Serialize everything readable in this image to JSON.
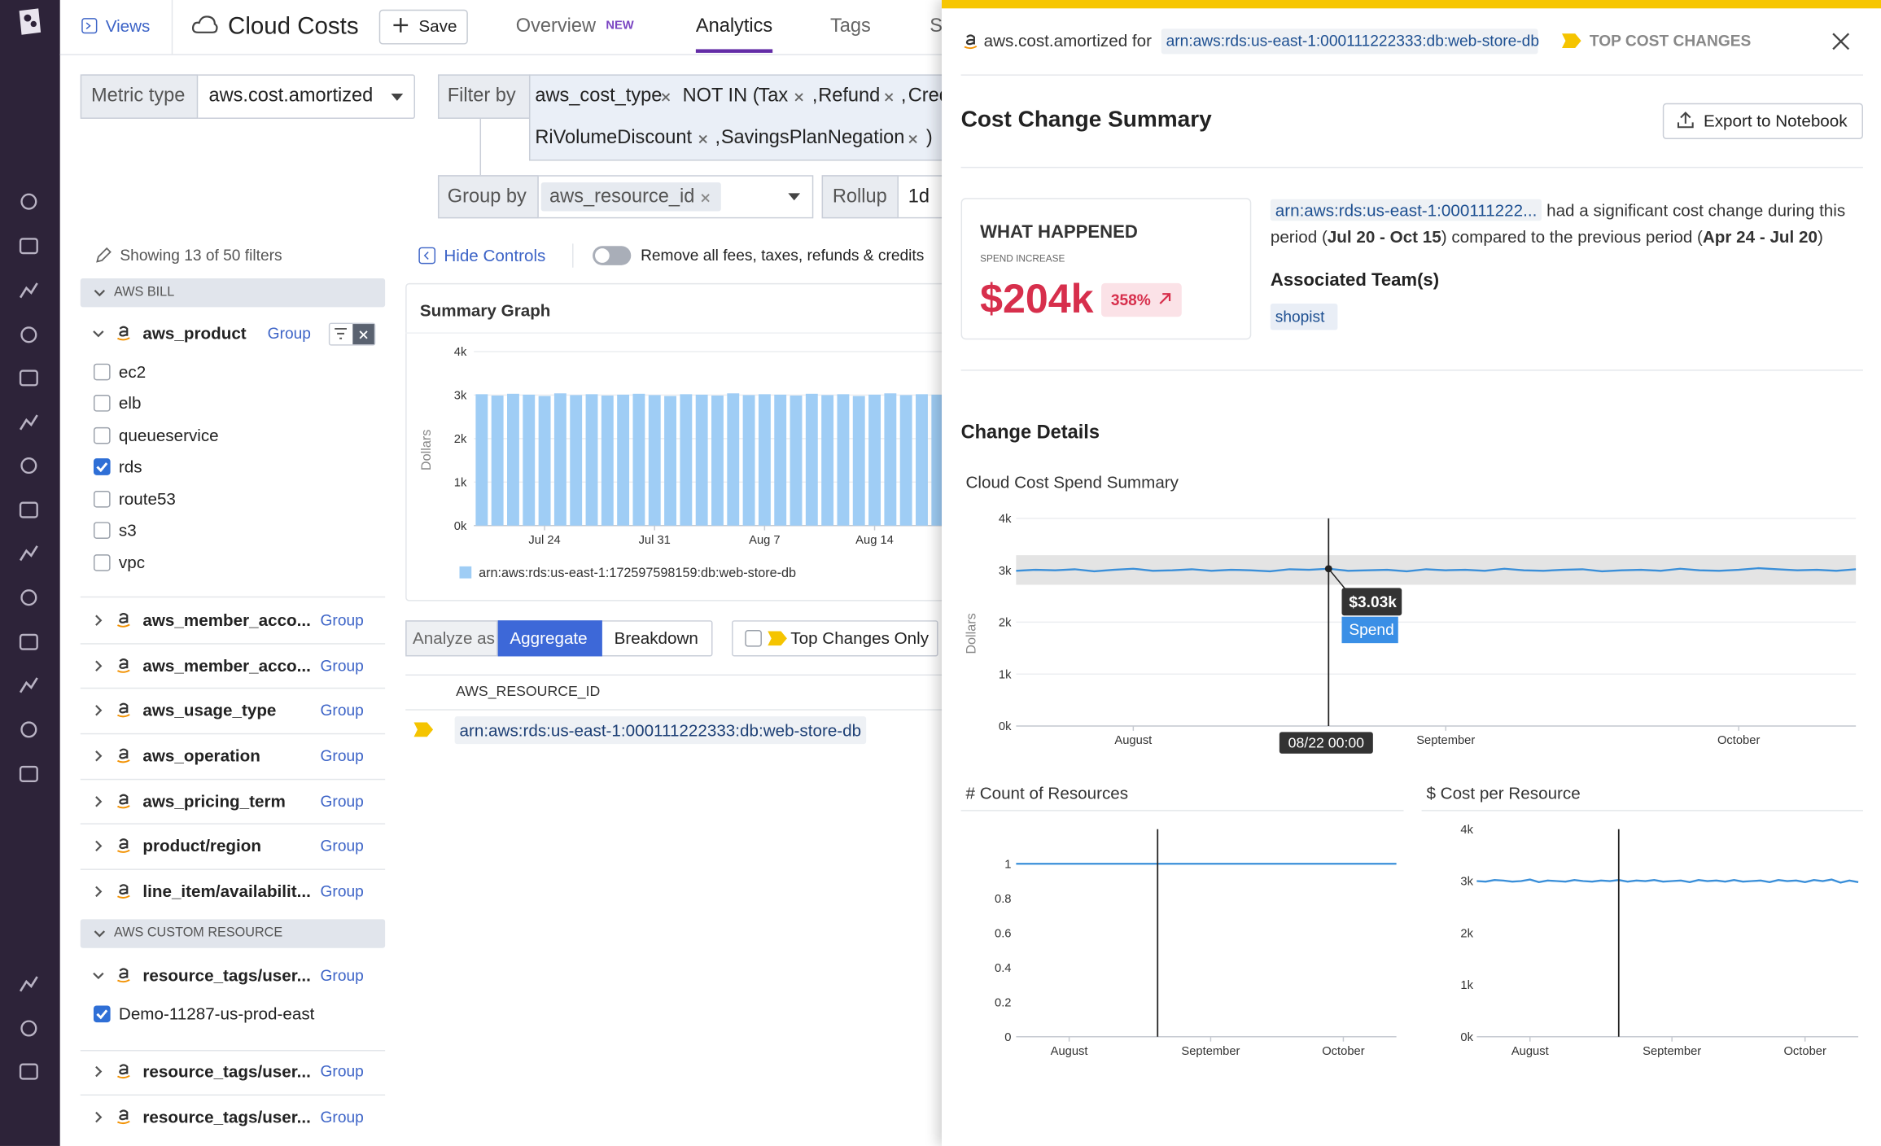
{
  "nav": {
    "views": "Views",
    "title": "Cloud Costs",
    "save": "Save",
    "tabs": [
      "Overview",
      "Analytics",
      "Tags",
      "Se"
    ],
    "new_badge": "NEW"
  },
  "query": {
    "metric_type_label": "Metric type",
    "metric_type": "aws.cost.amortized",
    "filter_by_label": "Filter by",
    "filter_tag": "aws_cost_type",
    "filter_op": "NOT IN (",
    "filter_separator": ",",
    "filter_values": [
      "Tax",
      "Refund",
      "Cred",
      "RiVolumeDiscount",
      "SavingsPlanNegation"
    ],
    "filter_close": ")",
    "group_by_label": "Group by",
    "group_by": "aws_resource_id",
    "rollup_label": "Rollup",
    "rollup": "1d"
  },
  "filters": {
    "showing": "Showing 13 of 50 filters",
    "group_link": "Group",
    "aws_bill": {
      "title": "AWS BILL",
      "facets": [
        {
          "name": "aws_product",
          "options": [
            {
              "label": "ec2",
              "checked": false
            },
            {
              "label": "elb",
              "checked": false
            },
            {
              "label": "queueservice",
              "checked": false
            },
            {
              "label": "rds",
              "checked": true
            },
            {
              "label": "route53",
              "checked": false
            },
            {
              "label": "s3",
              "checked": false
            },
            {
              "label": "vpc",
              "checked": false
            }
          ]
        },
        {
          "name": "aws_member_acco..."
        },
        {
          "name": "aws_member_acco..."
        },
        {
          "name": "aws_usage_type"
        },
        {
          "name": "aws_operation"
        },
        {
          "name": "aws_pricing_term"
        },
        {
          "name": "product/region"
        },
        {
          "name": "line_item/availabilit..."
        }
      ]
    },
    "aws_custom_resource": {
      "title": "AWS CUSTOM RESOURCE",
      "facets": [
        {
          "name": "resource_tags/user...",
          "options": [
            {
              "label": "Demo-11287-us-prod-east",
              "checked": true
            }
          ]
        },
        {
          "name": "resource_tags/user..."
        },
        {
          "name": "resource_tags/user..."
        }
      ]
    }
  },
  "controls": {
    "hide_controls": "Hide Controls",
    "remove_fees": "Remove all fees, taxes, refunds & credits"
  },
  "summary_graph": {
    "type": "bar",
    "title": "Summary Graph",
    "y_label": "Dollars",
    "categories": [
      null,
      null,
      null,
      null,
      "Jul 24",
      null,
      null,
      null,
      null,
      null,
      null,
      "Jul 31",
      null,
      null,
      null,
      null,
      null,
      null,
      "Aug 7",
      null,
      null,
      null,
      null,
      null,
      null,
      "Aug 14",
      null,
      null,
      null,
      null
    ],
    "series": [
      {
        "name": "arn:aws:rds:us-east-1:172597598159:db:web-store-db",
        "color": "#9fcdf5",
        "values": [
          3020,
          2990,
          3030,
          3010,
          2980,
          3040,
          3000,
          3020,
          2990,
          3010,
          3030,
          3000,
          2980,
          3020,
          3010,
          2990,
          3040,
          3000,
          3020,
          3010,
          2990,
          3030,
          3000,
          3020,
          2980,
          3010,
          3040,
          3000,
          3020,
          3010
        ]
      }
    ],
    "ylim": [
      0,
      4000
    ],
    "yticks": [
      {
        "value": 0,
        "label": "0k"
      },
      {
        "value": 1000,
        "label": "1k"
      },
      {
        "value": 2000,
        "label": "2k"
      },
      {
        "value": 3000,
        "label": "3k"
      },
      {
        "value": 4000,
        "label": "4k"
      }
    ],
    "grid": true
  },
  "analyze": {
    "label": "Analyze as",
    "options": [
      "Aggregate",
      "Breakdown"
    ],
    "top_changes": "Top Changes Only"
  },
  "table": {
    "header": "AWS_RESOURCE_ID",
    "rows": [
      "arn:aws:rds:us-east-1:000111222333:db:web-store-db"
    ]
  },
  "panel": {
    "metric_for": "aws.cost.amortized for",
    "resource": "arn:aws:rds:us-east-1:000111222333:db:web-store-db",
    "badge": "TOP COST CHANGES",
    "title": "Cost Change Summary",
    "export": "Export to Notebook",
    "what_happened": "WHAT HAPPENED",
    "spend_increase": "SPEND INCREASE",
    "amount": "$204k",
    "change": "358%",
    "description": [
      "arn:aws:rds:us-east-1:000111222...",
      "had a significant cost change during this period (",
      "Jul 20 - Oct 15",
      ") compared to the previous period (",
      "Apr 24 - Jul 20",
      ")"
    ],
    "teams_title": "Associated Team(s)",
    "teams": [
      "shopist"
    ],
    "change_details": "Change Details",
    "spend_chart": {
      "type": "line",
      "title": "Cloud Cost Spend Summary",
      "y_label": "Dollars",
      "color": "#3a8fd9",
      "band": [
        2720,
        3290
      ],
      "categories": [
        null,
        null,
        null,
        null,
        null,
        null,
        "August",
        null,
        null,
        null,
        null,
        null,
        null,
        null,
        null,
        null,
        null,
        null,
        null,
        null,
        null,
        null,
        "September",
        null,
        null,
        null,
        null,
        null,
        null,
        null,
        null,
        null,
        null,
        null,
        null,
        null,
        null,
        "October",
        null,
        null,
        null,
        null,
        null,
        null
      ],
      "values": [
        2990,
        3010,
        3000,
        3020,
        2980,
        3010,
        3030,
        2990,
        3000,
        3020,
        2990,
        3010,
        3000,
        2980,
        3020,
        3010,
        3030,
        2990,
        3000,
        3010,
        2980,
        3020,
        3000,
        3010,
        2990,
        3030,
        3000,
        2990,
        3010,
        3020,
        2980,
        3000,
        3010,
        2990,
        3030,
        3000,
        2990,
        3010,
        3040,
        3020,
        3000,
        3010,
        2990,
        3020
      ],
      "ylim": [
        0,
        4000
      ],
      "yticks": [
        {
          "value": 0,
          "label": "0k"
        },
        {
          "value": 1000,
          "label": "1k"
        },
        {
          "value": 2000,
          "label": "2k"
        },
        {
          "value": 3000,
          "label": "3k"
        },
        {
          "value": 4000,
          "label": "4k"
        }
      ],
      "grid": true,
      "tooltip": {
        "label": "$3.03k",
        "series": "Spend",
        "x_label": "08/22 00:00"
      }
    },
    "count_chart": {
      "type": "line",
      "title": "# Count of Resources",
      "color": "#3a8fd9",
      "categories": [
        null,
        null,
        null,
        null,
        null,
        null,
        "August",
        null,
        null,
        null,
        null,
        null,
        null,
        null,
        null,
        null,
        null,
        null,
        null,
        null,
        null,
        null,
        "September",
        null,
        null,
        null,
        null,
        null,
        null,
        null,
        null,
        null,
        null,
        null,
        null,
        null,
        null,
        "October",
        null,
        null,
        null,
        null,
        null,
        null
      ],
      "values": [
        1,
        1,
        1,
        1,
        1,
        1,
        1,
        1,
        1,
        1,
        1,
        1,
        1,
        1,
        1,
        1,
        1,
        1,
        1,
        1,
        1,
        1,
        1,
        1,
        1,
        1,
        1,
        1,
        1,
        1,
        1,
        1,
        1,
        1,
        1,
        1,
        1,
        1,
        1,
        1,
        1,
        1,
        1,
        1
      ],
      "ylim": [
        0,
        1.2
      ],
      "yticks": [
        0,
        0.2,
        0.4,
        0.6,
        0.8,
        1
      ],
      "grid": false
    },
    "cost_chart": {
      "type": "line",
      "title": "$ Cost per Resource",
      "color": "#3a8fd9",
      "categories": [
        null,
        null,
        null,
        null,
        null,
        null,
        "August",
        null,
        null,
        null,
        null,
        null,
        null,
        null,
        null,
        null,
        null,
        null,
        null,
        null,
        null,
        null,
        "September",
        null,
        null,
        null,
        null,
        null,
        null,
        null,
        null,
        null,
        null,
        null,
        null,
        null,
        null,
        "October",
        null,
        null,
        null,
        null,
        null,
        null
      ],
      "values": [
        3000,
        2990,
        3020,
        3010,
        2990,
        3000,
        3030,
        2980,
        3010,
        3000,
        2990,
        3020,
        3000,
        2990,
        3010,
        3000,
        3020,
        2990,
        3010,
        3000,
        3020,
        2990,
        3000,
        3010,
        2980,
        3020,
        3000,
        3010,
        2990,
        3020,
        2990,
        3000,
        3010,
        2980,
        3020,
        3000,
        3010,
        2980,
        3020,
        3000,
        3030,
        2970,
        3010,
        2980
      ],
      "ylim": [
        0,
        4000
      ],
      "yticks": [
        {
          "value": 0,
          "label": "0k"
        },
        {
          "value": 1000,
          "label": "1k"
        },
        {
          "value": 2000,
          "label": "2k"
        },
        {
          "value": 3000,
          "label": "3k"
        },
        {
          "value": 4000,
          "label": "4k"
        }
      ],
      "grid": false
    }
  }
}
